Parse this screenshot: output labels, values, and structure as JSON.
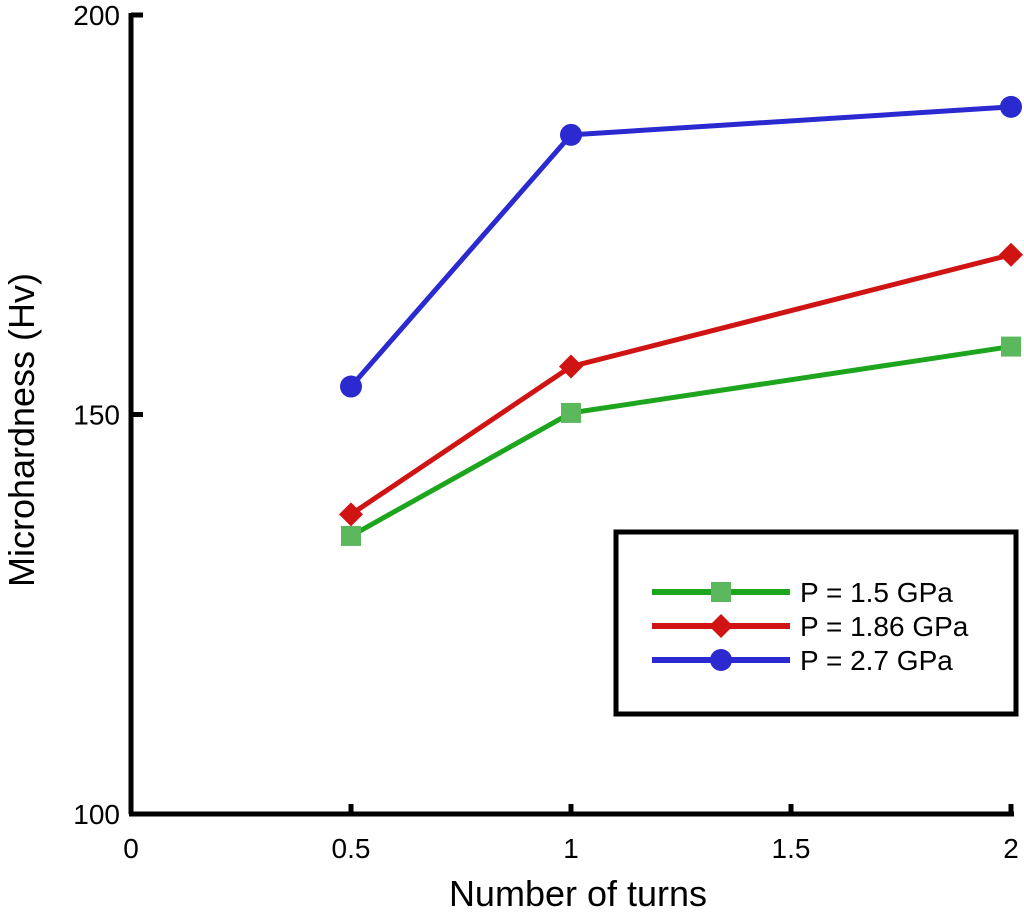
{
  "chart_data": {
    "type": "line",
    "xlabel": "Number of turns",
    "ylabel": "Microhardness (Hv)",
    "xlim": [
      0,
      2
    ],
    "ylim": [
      100,
      200
    ],
    "xticks": [
      {
        "value": 0,
        "label": "0"
      },
      {
        "value": 0.5,
        "label": "0.5"
      },
      {
        "value": 1,
        "label": "1"
      },
      {
        "value": 1.5,
        "label": "1.5"
      },
      {
        "value": 2,
        "label": "2"
      }
    ],
    "yticks": [
      {
        "value": 100,
        "label": "100"
      },
      {
        "value": 150,
        "label": "150"
      },
      {
        "value": 200,
        "label": "200"
      }
    ],
    "x": [
      0.5,
      1,
      2
    ],
    "series": [
      {
        "name": "P = 1.5 GPa",
        "color": "#1ea51e",
        "marker_color": "#5cb85c",
        "marker": "square",
        "values": [
          134.8,
          150.2,
          158.5
        ]
      },
      {
        "name": "P = 1.86 GPa",
        "color": "#d01414",
        "marker_color": "#d01414",
        "marker": "diamond",
        "values": [
          137.5,
          156.0,
          170.0
        ]
      },
      {
        "name": "P = 2.7 GPa",
        "color": "#2a2ad0",
        "marker_color": "#2a2ad0",
        "marker": "circle",
        "values": [
          153.5,
          185.0,
          188.5
        ]
      }
    ],
    "legend": "lower-right",
    "grid": false
  }
}
